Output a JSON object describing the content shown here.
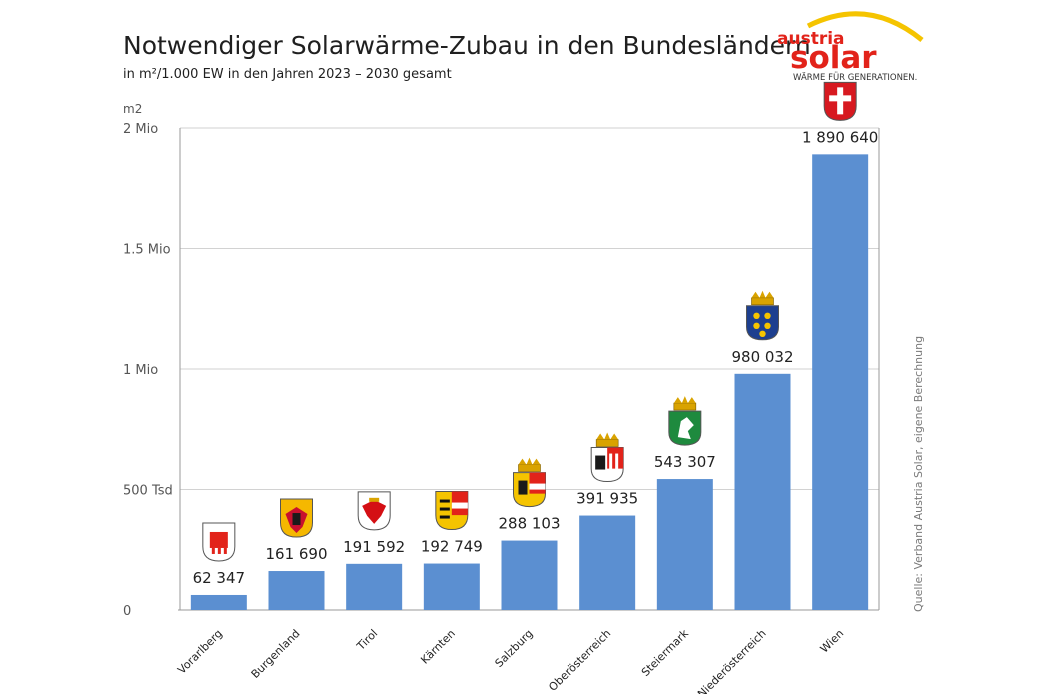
{
  "header": {
    "title": "Notwendiger Solarwärme-Zubau in den Bundesländern",
    "subtitle": "in m²/1.000 EW in den Jahren 2023 – 2030 gesamt"
  },
  "logo": {
    "line1": "austria",
    "line2": "solar",
    "tagline": "WÄRME FÜR GENERATIONEN.",
    "colors": {
      "red": "#e2231a",
      "yellow": "#f5c400"
    }
  },
  "source": "Quelle: Verband Austria Solar, eigene Berechnung",
  "chart_data": {
    "type": "bar",
    "title": "Notwendiger Solarwärme-Zubau in den Bundesländern",
    "subtitle": "in m²/1.000 EW in den Jahren 2023 – 2030 gesamt",
    "ylabel": "m2",
    "ylim": [
      0,
      2000000
    ],
    "yticks": [
      0,
      500000,
      1000000,
      1500000,
      2000000
    ],
    "ytick_labels": [
      "0",
      "500 Tsd",
      "1 Mio",
      "1.5 Mio",
      "2 Mio"
    ],
    "grid": true,
    "bar_color": "#5b8fd1",
    "categories": [
      "Vorarlberg",
      "Burgenland",
      "Tirol",
      "Kärnten",
      "Salzburg",
      "Oberösterreich",
      "Steiermark",
      "Niederösterreich",
      "Wien"
    ],
    "values": [
      62347,
      161690,
      191592,
      192749,
      288103,
      391935,
      543307,
      980032,
      1890640
    ],
    "value_labels": [
      "62 347",
      "161 690",
      "191 592",
      "192 749",
      "288 103",
      "391 935",
      "543 307",
      "980 032",
      "1 890 640"
    ],
    "coat_of_arms_icons": [
      "vorarlberg-coat-of-arms",
      "burgenland-coat-of-arms",
      "tirol-coat-of-arms",
      "kaernten-coat-of-arms",
      "salzburg-coat-of-arms",
      "oberoesterreich-coat-of-arms",
      "steiermark-coat-of-arms",
      "niederoesterreich-coat-of-arms",
      "wien-coat-of-arms"
    ]
  }
}
